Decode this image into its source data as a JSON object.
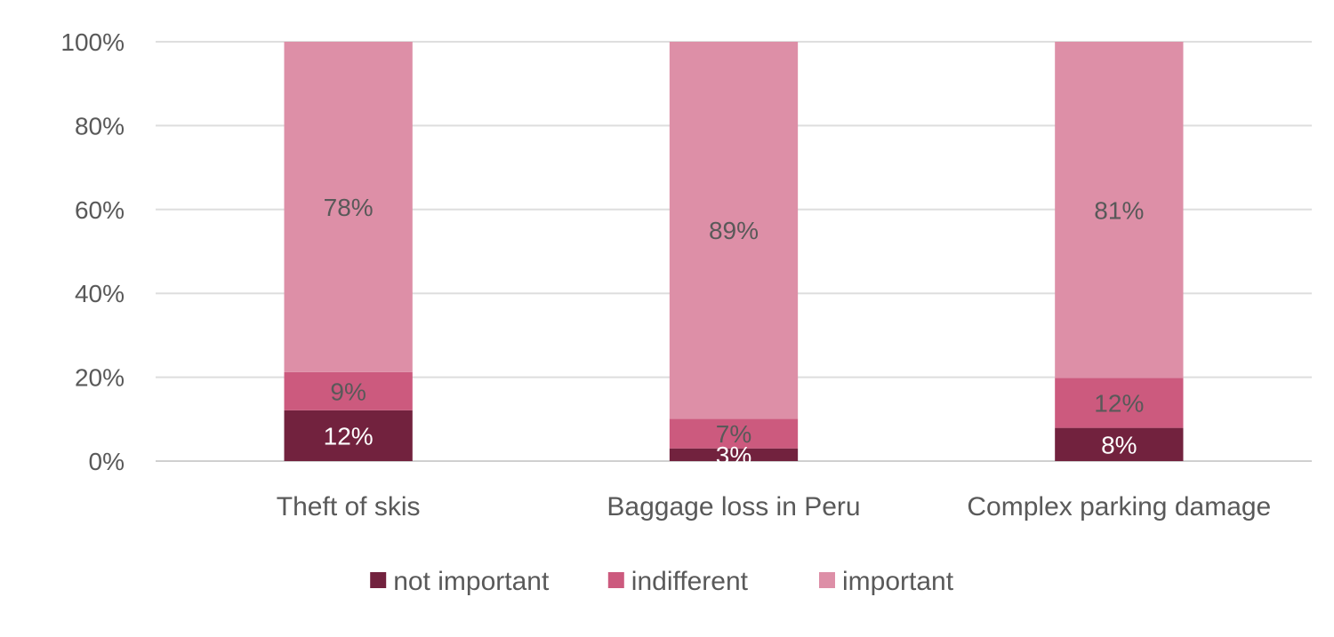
{
  "chart_data": {
    "type": "bar",
    "stacked": true,
    "percent_axis": true,
    "categories": [
      "Theft of skis",
      "Baggage loss in Peru",
      "Complex parking damage"
    ],
    "series": [
      {
        "name": "not important",
        "color": "#72223E",
        "label_color": "#ffffff",
        "values": [
          12,
          3,
          8
        ],
        "labels": [
          "12%",
          "3%",
          "8%"
        ]
      },
      {
        "name": "indifferent",
        "color": "#CC5A7E",
        "label_color": "#595959",
        "values": [
          9,
          7,
          12
        ],
        "labels": [
          "9%",
          "7%",
          "12%"
        ]
      },
      {
        "name": "important",
        "color": "#DD8FA7",
        "label_color": "#595959",
        "values": [
          78,
          89,
          81
        ],
        "labels": [
          "78%",
          "89%",
          "81%"
        ]
      }
    ],
    "y_ticks": [
      "0%",
      "20%",
      "40%",
      "60%",
      "80%",
      "100%"
    ],
    "ylim": [
      0,
      100
    ],
    "grid": true,
    "legend_position": "bottom"
  }
}
